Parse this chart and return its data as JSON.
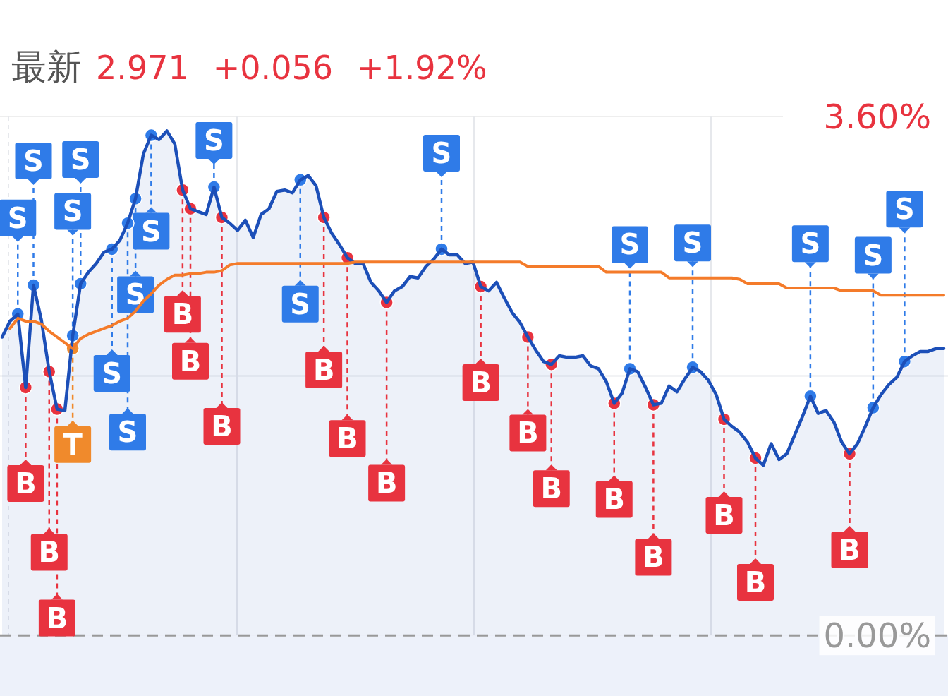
{
  "chart_data": {
    "type": "line",
    "title": "最新",
    "annotations": [
      "2.971",
      "+0.056",
      "+1.92%"
    ],
    "categories": [
      null,
      null,
      null,
      null,
      null,
      null,
      null,
      null,
      null,
      null,
      null,
      null,
      null,
      null,
      null,
      null,
      null,
      null,
      null,
      null,
      null,
      null,
      null,
      null,
      null,
      null,
      null,
      null,
      null,
      null,
      null,
      null,
      null,
      null,
      null,
      null,
      null,
      null,
      null,
      null,
      null,
      null,
      null,
      null,
      null,
      null,
      null,
      null,
      null,
      null,
      null,
      null,
      null,
      null,
      null,
      null,
      null,
      null,
      null,
      null,
      null,
      null,
      null,
      null,
      null,
      null,
      null,
      null,
      null,
      null,
      null,
      null,
      null,
      null,
      null,
      null,
      null,
      null,
      null,
      null,
      null,
      null,
      null,
      null,
      null,
      null,
      null,
      null,
      null,
      null,
      null,
      null,
      null,
      null,
      null,
      null,
      null,
      null,
      null,
      null,
      null,
      null,
      null,
      null,
      null,
      null,
      null,
      null,
      null,
      null,
      null,
      null,
      null,
      null,
      null,
      null,
      null,
      null,
      null,
      null,
      null
    ],
    "ylim": [
      -0.42,
      3.6
    ],
    "yticks": [
      {
        "value": 0,
        "label": "0.00%"
      },
      {
        "value": 1.8,
        "label": null
      },
      {
        "value": 3.6,
        "label": "3.60%"
      }
    ],
    "tick_labels": "y",
    "grid": true,
    "ref_lines": [
      {
        "axis": "y",
        "value": 0,
        "color": "#999999",
        "line_style": "dashed"
      }
    ],
    "series": [
      {
        "type": "area",
        "color": "#1c4fb8",
        "values": [
          2.07,
          2.18,
          2.23,
          1.72,
          2.43,
          2.19,
          1.83,
          1.57,
          1.56,
          2.08,
          2.44,
          2.52,
          2.58,
          2.66,
          2.68,
          2.74,
          2.86,
          3.03,
          3.34,
          3.47,
          3.44,
          3.5,
          3.41,
          3.09,
          2.96,
          2.94,
          2.92,
          3.11,
          2.9,
          2.86,
          2.81,
          2.88,
          2.76,
          2.92,
          2.96,
          3.08,
          3.09,
          3.07,
          3.16,
          3.19,
          3.12,
          2.9,
          2.79,
          2.71,
          2.62,
          2.58,
          2.58,
          2.45,
          2.39,
          2.31,
          2.39,
          2.42,
          2.49,
          2.48,
          2.56,
          2.61,
          2.68,
          2.64,
          2.64,
          2.58,
          2.59,
          2.42,
          2.39,
          2.45,
          2.34,
          2.24,
          2.17,
          2.07,
          1.98,
          1.9,
          1.88,
          1.94,
          1.93,
          1.93,
          1.94,
          1.87,
          1.85,
          1.76,
          1.61,
          1.68,
          1.85,
          1.83,
          1.72,
          1.6,
          1.61,
          1.73,
          1.69,
          1.78,
          1.86,
          1.83,
          1.77,
          1.67,
          1.5,
          1.45,
          1.41,
          1.34,
          1.23,
          1.18,
          1.33,
          1.22,
          1.26,
          1.39,
          1.52,
          1.66,
          1.54,
          1.56,
          1.48,
          1.34,
          1.26,
          1.33,
          1.45,
          1.58,
          1.67,
          1.74,
          1.79,
          1.9,
          1.94,
          1.97,
          1.97,
          1.99,
          1.99
        ],
        "value_labels": [
          null,
          null,
          "S",
          "B",
          "S",
          null,
          "B",
          "B",
          null,
          "S",
          "S",
          null,
          null,
          null,
          "S",
          null,
          "S",
          "S",
          null,
          "S",
          null,
          null,
          null,
          "B",
          "B",
          null,
          null,
          "S",
          "B",
          null,
          null,
          null,
          null,
          null,
          null,
          null,
          null,
          null,
          "S",
          null,
          null,
          "B",
          null,
          null,
          "B",
          null,
          null,
          null,
          null,
          "B",
          null,
          null,
          null,
          null,
          null,
          null,
          "S",
          null,
          null,
          null,
          null,
          "B",
          null,
          null,
          null,
          null,
          null,
          "B",
          null,
          null,
          "B",
          null,
          null,
          null,
          null,
          null,
          null,
          null,
          "B",
          null,
          "S",
          null,
          null,
          "B",
          null,
          null,
          null,
          null,
          "S",
          null,
          null,
          null,
          "B",
          null,
          null,
          null,
          "B",
          null,
          null,
          null,
          null,
          null,
          null,
          "S",
          null,
          null,
          null,
          null,
          "B",
          null,
          null,
          "S",
          null,
          null,
          null,
          "S",
          null,
          null,
          null,
          null,
          null
        ],
        "colors": [
          null,
          null,
          "#2f7be8",
          "#e8333f",
          "#2f7be8",
          null,
          "#e8333f",
          "#e8333f",
          null,
          "#2f7be8",
          "#2f7be8",
          null,
          null,
          null,
          "#2f7be8",
          null,
          "#2f7be8",
          "#2f7be8",
          null,
          "#2f7be8",
          null,
          null,
          null,
          "#e8333f",
          "#e8333f",
          null,
          null,
          "#2f7be8",
          "#e8333f",
          null,
          null,
          null,
          null,
          null,
          null,
          null,
          null,
          null,
          "#2f7be8",
          null,
          null,
          "#e8333f",
          null,
          null,
          "#e8333f",
          null,
          null,
          null,
          null,
          "#e8333f",
          null,
          null,
          null,
          null,
          null,
          null,
          "#2f7be8",
          null,
          null,
          null,
          null,
          "#e8333f",
          null,
          null,
          null,
          null,
          null,
          "#e8333f",
          null,
          null,
          "#e8333f",
          null,
          null,
          null,
          null,
          null,
          null,
          null,
          "#e8333f",
          null,
          "#2f7be8",
          null,
          null,
          "#e8333f",
          null,
          null,
          null,
          null,
          "#2f7be8",
          null,
          null,
          null,
          "#e8333f",
          null,
          null,
          null,
          "#e8333f",
          null,
          null,
          null,
          null,
          null,
          null,
          "#2f7be8",
          null,
          null,
          null,
          null,
          "#e8333f",
          null,
          null,
          "#2f7be8",
          null,
          null,
          null,
          "#2f7be8",
          null,
          null,
          null,
          null,
          null
        ]
      },
      {
        "color": "#f47b2a",
        "values": [
          null,
          2.13,
          2.2,
          2.18,
          2.18,
          2.16,
          2.11,
          2.07,
          2.03,
          1.99,
          2.06,
          2.09,
          2.11,
          2.13,
          2.15,
          2.18,
          2.2,
          2.25,
          2.32,
          2.37,
          2.43,
          2.47,
          2.5,
          2.5,
          2.51,
          2.51,
          2.52,
          2.52,
          2.53,
          2.57,
          2.58,
          2.58,
          2.58,
          2.58,
          2.58,
          2.58,
          2.58,
          2.58,
          2.58,
          2.58,
          2.58,
          2.58,
          2.58,
          2.58,
          2.58,
          2.59,
          2.59,
          2.59,
          2.59,
          2.59,
          2.59,
          2.59,
          2.59,
          2.59,
          2.59,
          2.59,
          2.59,
          2.59,
          2.59,
          2.59,
          2.59,
          2.59,
          2.59,
          2.59,
          2.59,
          2.59,
          2.59,
          2.56,
          2.56,
          2.56,
          2.56,
          2.56,
          2.56,
          2.56,
          2.56,
          2.56,
          2.56,
          2.52,
          2.52,
          2.52,
          2.52,
          2.52,
          2.52,
          2.52,
          2.52,
          2.48,
          2.48,
          2.48,
          2.48,
          2.48,
          2.48,
          2.48,
          2.48,
          2.48,
          2.47,
          2.44,
          2.44,
          2.44,
          2.44,
          2.44,
          2.41,
          2.41,
          2.41,
          2.41,
          2.41,
          2.41,
          2.41,
          2.39,
          2.39,
          2.39,
          2.39,
          2.39,
          2.36,
          2.36,
          2.36,
          2.36,
          2.36,
          2.36,
          2.36,
          2.36,
          2.36
        ],
        "value_labels": [
          null,
          null,
          null,
          null,
          null,
          null,
          null,
          null,
          null,
          "T",
          null,
          null,
          null,
          null,
          null,
          null,
          null,
          null,
          null,
          null,
          null,
          null,
          null,
          null,
          null,
          null,
          null,
          null,
          null,
          null,
          null,
          null,
          null,
          null,
          null,
          null,
          null,
          null,
          null,
          null,
          null,
          null,
          null,
          null,
          null,
          null,
          null,
          null,
          null,
          null,
          null,
          null,
          null,
          null,
          null,
          null,
          null,
          null,
          null,
          null,
          null,
          null,
          null,
          null,
          null,
          null,
          null,
          null,
          null,
          null,
          null,
          null,
          null,
          null,
          null,
          null,
          null,
          null,
          null,
          null,
          null,
          null,
          null,
          null,
          null,
          null,
          null,
          null,
          null,
          null,
          null,
          null,
          null,
          null,
          null,
          null,
          null,
          null,
          null,
          null,
          null,
          null,
          null,
          null,
          null,
          null,
          null,
          null,
          null,
          null,
          null,
          null,
          null,
          null,
          null,
          null,
          null,
          null,
          null,
          null,
          null
        ],
        "colors": [
          null,
          null,
          null,
          null,
          null,
          null,
          null,
          null,
          null,
          "#f08a2c",
          null,
          null,
          null,
          null,
          null,
          null,
          null,
          null,
          null,
          null,
          null,
          null,
          null,
          null,
          null,
          null,
          null,
          null,
          null,
          null,
          null,
          null,
          null,
          null,
          null,
          null,
          null,
          null,
          null,
          null,
          null,
          null,
          null,
          null,
          null,
          null,
          null,
          null,
          null,
          null,
          null,
          null,
          null,
          null,
          null,
          null,
          null,
          null,
          null,
          null,
          null,
          null,
          null,
          null,
          null,
          null,
          null,
          null,
          null,
          null,
          null,
          null,
          null,
          null,
          null,
          null,
          null,
          null,
          null,
          null,
          null,
          null,
          null,
          null,
          null,
          null,
          null,
          null,
          null,
          null,
          null,
          null,
          null,
          null,
          null,
          null,
          null,
          null,
          null,
          null,
          null,
          null,
          null,
          null,
          null,
          null,
          null,
          null,
          null,
          null,
          null,
          null,
          null,
          null,
          null,
          null,
          null,
          null,
          null,
          null,
          null
        ]
      }
    ]
  }
}
